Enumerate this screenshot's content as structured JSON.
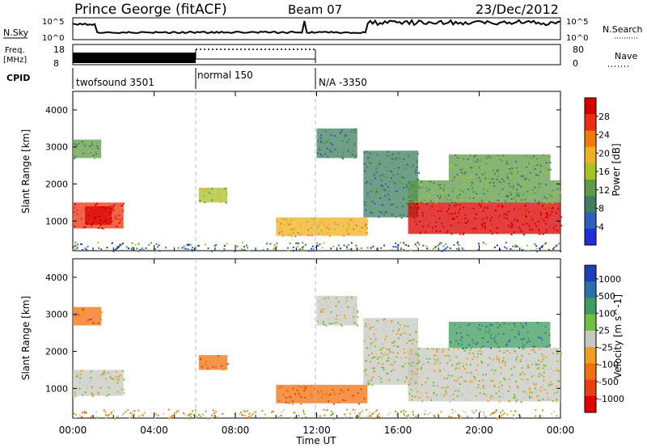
{
  "header": {
    "station": "Prince George (fitACF)",
    "beam": "Beam 07",
    "date": "23/Dec/2012"
  },
  "noise_panel": {
    "left_label": "N.Sky",
    "right_label": "N.Search",
    "left_ticks": [
      "10^5",
      "10^0"
    ],
    "right_ticks": [
      "10^5",
      "10^0"
    ]
  },
  "freq_panel": {
    "left_label_1": "Freq.",
    "left_label_2": "[MHz]",
    "left_ticks": [
      "18",
      "8"
    ],
    "right_ticks": [
      "80",
      "0"
    ],
    "right_label": "Nave"
  },
  "cpid": {
    "label": "CPID",
    "segments": [
      {
        "label": "twofsound 3501",
        "start_hour": 0
      },
      {
        "label": "normal 150",
        "start_hour": 6
      },
      {
        "label": "N/A -3350",
        "start_hour": 12
      }
    ]
  },
  "colors": {
    "power_scale": [
      "#1f2fd8",
      "#2e5fbf",
      "#3f7f5f",
      "#5e9a48",
      "#a6c228",
      "#f0b020",
      "#f07a10",
      "#e83010",
      "#d80000"
    ],
    "velocity_scale": [
      "#1a3fb8",
      "#2d6fa8",
      "#3f9a60",
      "#70c040",
      "#c8c8c0",
      "#f0a020",
      "#f07010",
      "#e84010",
      "#e00000"
    ],
    "divider": "#bbbbbb"
  },
  "chart_data": [
    {
      "type": "heatmap",
      "title": "Power",
      "ylabel": "Slant Range [km]",
      "xlabel": "Time UT",
      "x_ticks": [
        "00:00",
        "04:00",
        "08:00",
        "12:00",
        "16:00",
        "20:00",
        "00:00"
      ],
      "y_ticks": [
        "1000",
        "2000",
        "3000",
        "4000"
      ],
      "xlim_hours": [
        0,
        24
      ],
      "ylim_km": [
        200,
        4500
      ],
      "colorbar": {
        "label": "Power [dB]",
        "ticks": [
          "4",
          "8",
          "12",
          "16",
          "20",
          "24",
          "28"
        ]
      },
      "regions": [
        {
          "t0": 0.0,
          "t1": 2.5,
          "r0": 800,
          "r1": 1500,
          "level": 7
        },
        {
          "t0": 0.6,
          "t1": 1.9,
          "r0": 900,
          "r1": 1400,
          "level": 8
        },
        {
          "t0": 0.0,
          "t1": 1.4,
          "r0": 2700,
          "r1": 3200,
          "level": 3
        },
        {
          "t0": 6.2,
          "t1": 7.6,
          "r0": 1500,
          "r1": 1900,
          "level": 4
        },
        {
          "t0": 10.0,
          "t1": 14.5,
          "r0": 600,
          "r1": 1100,
          "level": 5
        },
        {
          "t0": 12.0,
          "t1": 14.0,
          "r0": 2700,
          "r1": 3500,
          "level": 2
        },
        {
          "t0": 14.3,
          "t1": 17.0,
          "r0": 1100,
          "r1": 2900,
          "level": 2
        },
        {
          "t0": 16.5,
          "t1": 24.0,
          "r0": 650,
          "r1": 1500,
          "level": 8
        },
        {
          "t0": 16.5,
          "t1": 24.0,
          "r0": 1500,
          "r1": 2100,
          "level": 3
        },
        {
          "t0": 18.5,
          "t1": 23.5,
          "r0": 2100,
          "r1": 2800,
          "level": 3
        }
      ]
    },
    {
      "type": "heatmap",
      "title": "Velocity",
      "ylabel": "Slant Range [km]",
      "xlabel": "Time UT",
      "x_ticks": [
        "00:00",
        "04:00",
        "08:00",
        "12:00",
        "16:00",
        "20:00",
        "00:00"
      ],
      "y_ticks": [
        "1000",
        "2000",
        "3000",
        "4000"
      ],
      "xlim_hours": [
        0,
        24
      ],
      "ylim_km": [
        200,
        4500
      ],
      "colorbar": {
        "label": "Velocity [m s^-1]",
        "ticks": [
          "1000",
          "500",
          "100",
          "25",
          "-25",
          "-100",
          "-500",
          "-1000"
        ]
      },
      "regions": [
        {
          "t0": 0.0,
          "t1": 2.5,
          "r0": 800,
          "r1": 1500,
          "level": 4
        },
        {
          "t0": 0.0,
          "t1": 1.4,
          "r0": 2700,
          "r1": 3200,
          "level": 6
        },
        {
          "t0": 6.2,
          "t1": 7.6,
          "r0": 1500,
          "r1": 1900,
          "level": 6
        },
        {
          "t0": 10.0,
          "t1": 14.5,
          "r0": 600,
          "r1": 1100,
          "level": 6
        },
        {
          "t0": 12.0,
          "t1": 14.0,
          "r0": 2700,
          "r1": 3500,
          "level": 4
        },
        {
          "t0": 14.3,
          "t1": 17.0,
          "r0": 1100,
          "r1": 2900,
          "level": 4
        },
        {
          "t0": 16.5,
          "t1": 24.0,
          "r0": 650,
          "r1": 2100,
          "level": 4
        },
        {
          "t0": 18.5,
          "t1": 23.5,
          "r0": 2100,
          "r1": 2800,
          "level": 2
        }
      ]
    }
  ]
}
